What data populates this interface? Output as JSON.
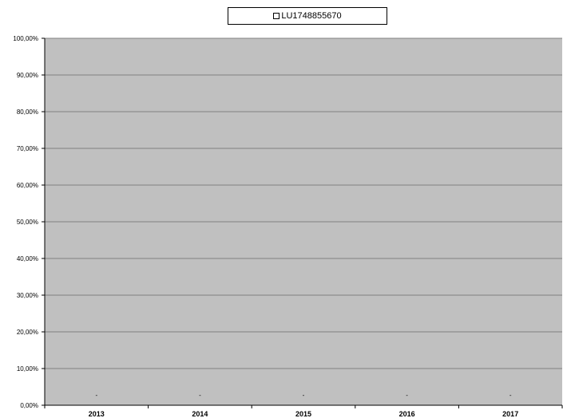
{
  "chart_data": {
    "type": "bar",
    "categories": [
      "2013",
      "2014",
      "2015",
      "2016",
      "2017"
    ],
    "series": [
      {
        "name": "LU1748855670",
        "values": [
          null,
          null,
          null,
          null,
          null
        ]
      }
    ],
    "data_labels": [
      "-",
      "-",
      "-",
      "-",
      "-"
    ],
    "y_ticks": [
      "0,00%",
      "10,00%",
      "20,00%",
      "30,00%",
      "40,00%",
      "50,00%",
      "60,00%",
      "70,00%",
      "80,00%",
      "90,00%",
      "100,00%"
    ],
    "ylim": [
      0,
      100
    ],
    "grid": true,
    "legend": "top",
    "colors": {
      "plot_bg": "#c0c0c0",
      "grid": "#808080",
      "axis": "#000000"
    }
  }
}
